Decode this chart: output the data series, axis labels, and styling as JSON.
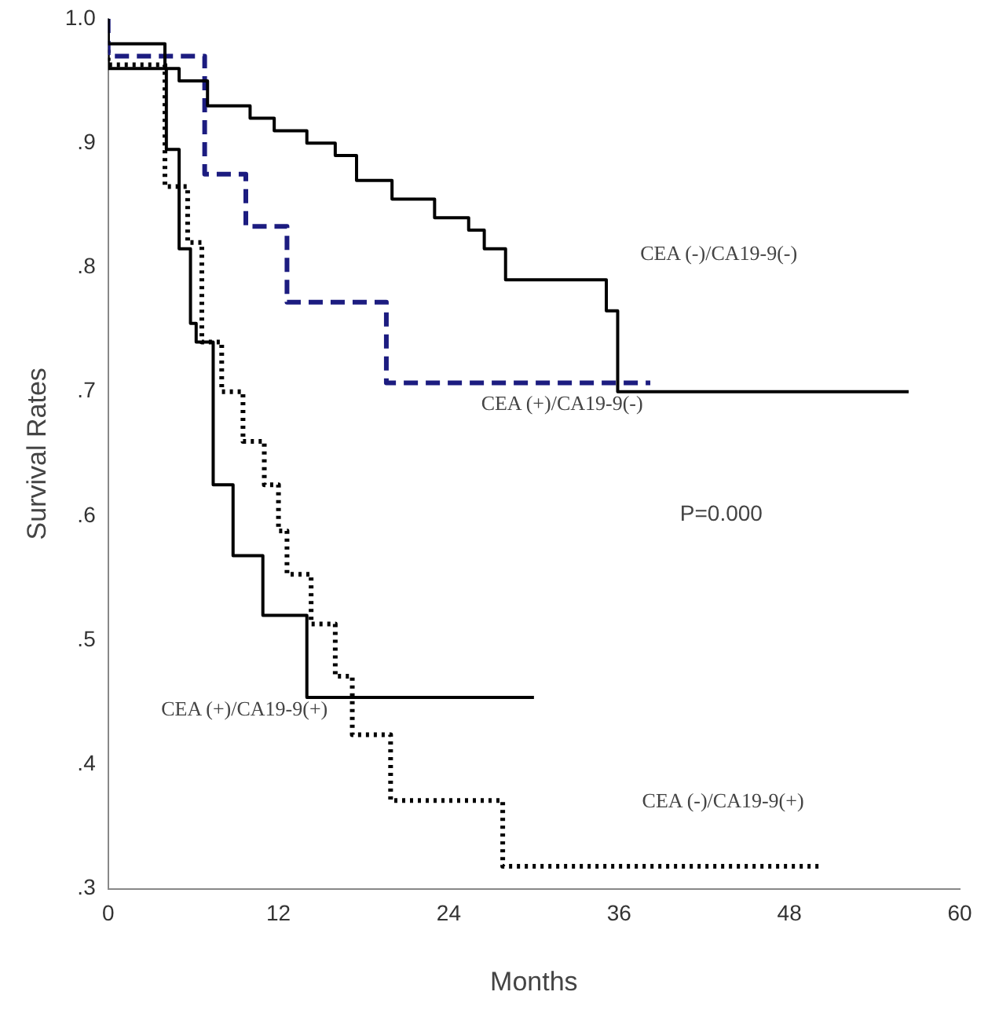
{
  "chart_data": {
    "type": "step",
    "xlabel": "Months",
    "ylabel": "Survival Rates",
    "xlim": [
      0,
      60
    ],
    "xticks": [
      0,
      12,
      24,
      36,
      48,
      60
    ],
    "ylim": [
      0.3,
      1.0
    ],
    "yticks": [
      {
        "value": 0.3,
        "label": ".3"
      },
      {
        "value": 0.4,
        "label": ".4"
      },
      {
        "value": 0.5,
        "label": ".5"
      },
      {
        "value": 0.6,
        "label": ".6"
      },
      {
        "value": 0.7,
        "label": ".7"
      },
      {
        "value": 0.8,
        "label": ".8"
      },
      {
        "value": 0.9,
        "label": ".9"
      },
      {
        "value": 1.0,
        "label": "1.0"
      }
    ],
    "grid": false,
    "legend": false,
    "series": [
      {
        "name": "CEA (-)/CA19-9(-)",
        "color": "#000000",
        "line_style": "solid",
        "x": [
          0,
          4,
          5,
          7,
          10,
          11.7,
          14,
          16,
          17.5,
          20,
          23,
          25.4,
          26.5,
          28,
          35.1,
          35.9,
          40.7,
          56.4
        ],
        "values": [
          1.0,
          0.98,
          0.96,
          0.95,
          0.93,
          0.92,
          0.91,
          0.9,
          0.89,
          0.87,
          0.855,
          0.84,
          0.83,
          0.815,
          0.79,
          0.765,
          0.7,
          0.7
        ]
      },
      {
        "name": "CEA (+)/CA19-9(-)",
        "color": "#1c1c80",
        "line_style": "dashed",
        "x": [
          0,
          6.8,
          9.7,
          12.6,
          19.6,
          22.6,
          38.2
        ],
        "values": [
          1.0,
          0.97,
          0.875,
          0.833,
          0.772,
          0.707,
          0.707
        ]
      },
      {
        "name": "CEA (+)/CA19-9(+)",
        "color": "#000000",
        "line_style": "solid",
        "x": [
          0,
          4.1,
          5,
          5.8,
          6.2,
          7.4,
          8.8,
          10.9,
          14,
          14.8,
          30
        ],
        "values": [
          1.0,
          0.96,
          0.895,
          0.815,
          0.755,
          0.74,
          0.625,
          0.568,
          0.52,
          0.454,
          0.454
        ]
      },
      {
        "name": "CEA (-)/CA19-9(+)",
        "color": "#000000",
        "line_style": "dotted",
        "x": [
          0,
          4,
          5.6,
          6.6,
          8,
          9.5,
          11,
          12,
          12.6,
          14.3,
          16,
          17.2,
          19.9,
          27.8,
          31.9,
          50.3
        ],
        "values": [
          0.975,
          0.963,
          0.865,
          0.82,
          0.74,
          0.7,
          0.66,
          0.625,
          0.588,
          0.553,
          0.513,
          0.471,
          0.424,
          0.371,
          0.318,
          0.318
        ]
      }
    ],
    "annotations": [
      "P=0.000"
    ]
  }
}
